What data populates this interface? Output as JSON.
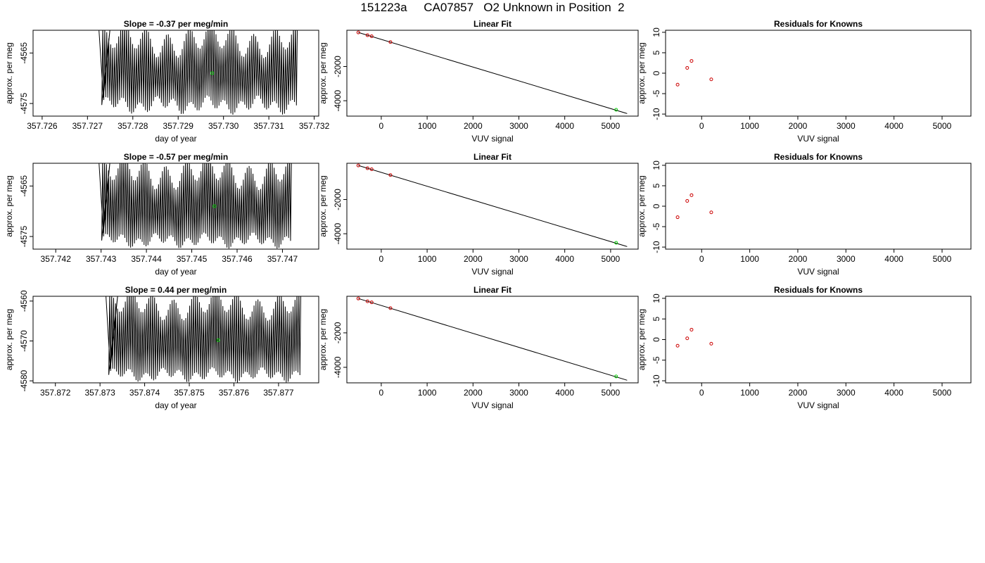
{
  "page": {
    "title": "151223a     CA07857   O2 Unknown in Position  2"
  },
  "chart_data": [
    {
      "type": "line",
      "title": "Slope =  -0.37  per meg/min",
      "xlabel": "day of year",
      "ylabel": "approx. per meg",
      "xlim": [
        357.7258,
        357.7321
      ],
      "ylim": [
        -4577.5,
        -4560.5
      ],
      "xticks": [
        357.726,
        357.727,
        357.728,
        357.729,
        357.73,
        357.731,
        357.732
      ],
      "xtick_labels": [
        "357.726",
        "357.727",
        "357.728",
        "357.729",
        "357.730",
        "357.731",
        "357.732"
      ],
      "yticks": [
        -4565,
        -4575
      ],
      "ytick_labels": [
        "-4565",
        "-4575"
      ],
      "trace": {
        "x_start": 357.72725,
        "x_end": 357.73163,
        "cycles": 100,
        "low_mean": -4575.3,
        "low_amp": 1.2,
        "high_mean": -4562.5,
        "high_amp": 2.5,
        "onset": [
          357.72725,
          357.72735,
          357.7275
        ],
        "color": "#000000"
      },
      "highlight_point": {
        "x": 357.72975,
        "y": -4569.0,
        "color": "#00cc00"
      },
      "grid": false
    },
    {
      "type": "scatter",
      "title": "Linear Fit",
      "xlabel": "VUV signal",
      "ylabel": "approx. per meg",
      "xlim": [
        -750,
        5600
      ],
      "ylim": [
        -4900,
        120
      ],
      "xticks": [
        0,
        1000,
        2000,
        3000,
        4000,
        5000
      ],
      "xtick_labels": [
        "0",
        "1000",
        "2000",
        "3000",
        "4000",
        "5000"
      ],
      "yticks": [
        -2000,
        -4000
      ],
      "ytick_labels": [
        "-2000",
        "-4000"
      ],
      "knowns": {
        "x": [
          -500,
          -300,
          -210,
          200
        ],
        "y": [
          -10,
          -170,
          -230,
          -570
        ],
        "color": "#cc0000"
      },
      "unknown": {
        "x": [
          5120
        ],
        "y": [
          -4530
        ],
        "color": "#00cc00"
      },
      "fit_line": {
        "x": [
          -500,
          5360
        ],
        "y": [
          -10,
          -4750
        ],
        "color": "#000000"
      },
      "grid": false
    },
    {
      "type": "scatter",
      "title": "Residuals for Knowns",
      "xlabel": "VUV signal",
      "ylabel": "approx. per meg",
      "xlim": [
        -750,
        5600
      ],
      "ylim": [
        -10.5,
        10.5
      ],
      "xticks": [
        0,
        1000,
        2000,
        3000,
        4000,
        5000
      ],
      "xtick_labels": [
        "0",
        "1000",
        "2000",
        "3000",
        "4000",
        "5000"
      ],
      "yticks": [
        10,
        5,
        0,
        -5,
        -10
      ],
      "ytick_labels": [
        "10",
        "5",
        "0",
        "-5",
        "-10"
      ],
      "points": {
        "x": [
          -500,
          -300,
          -210,
          200
        ],
        "y": [
          -2.8,
          1.3,
          3.0,
          -1.5
        ],
        "color": "#cc0000"
      },
      "grid": false
    },
    {
      "type": "line",
      "title": "Slope =  -0.57  per meg/min",
      "xlabel": "day of year",
      "ylabel": "approx. per meg",
      "xlim": [
        357.7415,
        357.7478
      ],
      "ylim": [
        -4577.5,
        -4560.5
      ],
      "xticks": [
        357.742,
        357.743,
        357.744,
        357.745,
        357.746,
        357.747
      ],
      "xtick_labels": [
        "357.742",
        "357.743",
        "357.744",
        "357.745",
        "357.746",
        "357.747"
      ],
      "yticks": [
        -4565,
        -4575
      ],
      "ytick_labels": [
        "-4565",
        "-4575"
      ],
      "trace": {
        "x_start": 357.74295,
        "x_end": 357.7472,
        "cycles": 100,
        "low_mean": -4575.8,
        "low_amp": 1.0,
        "high_mean": -4562.3,
        "high_amp": 2.5,
        "onset": [
          357.74295,
          357.74305,
          357.7432
        ],
        "color": "#000000"
      },
      "highlight_point": {
        "x": 357.7455,
        "y": -4569.0,
        "color": "#00cc00"
      },
      "grid": false
    },
    {
      "type": "scatter",
      "title": "Linear Fit",
      "xlabel": "VUV signal",
      "ylabel": "approx. per meg",
      "xlim": [
        -750,
        5600
      ],
      "ylim": [
        -4900,
        120
      ],
      "xticks": [
        0,
        1000,
        2000,
        3000,
        4000,
        5000
      ],
      "xtick_labels": [
        "0",
        "1000",
        "2000",
        "3000",
        "4000",
        "5000"
      ],
      "yticks": [
        -2000,
        -4000
      ],
      "ytick_labels": [
        "-2000",
        "-4000"
      ],
      "knowns": {
        "x": [
          -500,
          -300,
          -210,
          200
        ],
        "y": [
          -10,
          -170,
          -230,
          -570
        ],
        "color": "#cc0000"
      },
      "unknown": {
        "x": [
          5120
        ],
        "y": [
          -4530
        ],
        "color": "#00cc00"
      },
      "fit_line": {
        "x": [
          -500,
          5360
        ],
        "y": [
          -10,
          -4750
        ],
        "color": "#000000"
      },
      "grid": false
    },
    {
      "type": "scatter",
      "title": "Residuals for Knowns",
      "xlabel": "VUV signal",
      "ylabel": "approx. per meg",
      "xlim": [
        -750,
        5600
      ],
      "ylim": [
        -10.5,
        10.5
      ],
      "xticks": [
        0,
        1000,
        2000,
        3000,
        4000,
        5000
      ],
      "xtick_labels": [
        "0",
        "1000",
        "2000",
        "3000",
        "4000",
        "5000"
      ],
      "yticks": [
        10,
        5,
        0,
        -5,
        -10
      ],
      "ytick_labels": [
        "10",
        "5",
        "0",
        "-5",
        "-10"
      ],
      "points": {
        "x": [
          -500,
          -300,
          -210,
          200
        ],
        "y": [
          -2.7,
          1.3,
          2.7,
          -1.5
        ],
        "color": "#cc0000"
      },
      "grid": false
    },
    {
      "type": "line",
      "title": "Slope =  0.44  per meg/min",
      "xlabel": "day of year",
      "ylabel": "approx. per meg",
      "xlim": [
        357.8715,
        357.8779
      ],
      "ylim": [
        -4580.5,
        -4558.8
      ],
      "xticks": [
        357.872,
        357.873,
        357.874,
        357.875,
        357.876,
        357.877
      ],
      "xtick_labels": [
        "357.872",
        "357.873",
        "357.874",
        "357.875",
        "357.876",
        "357.877"
      ],
      "yticks": [
        -4560,
        -4570,
        -4580
      ],
      "ytick_labels": [
        "-4560",
        "-4570",
        "-4580"
      ],
      "trace": {
        "x_start": 357.87313,
        "x_end": 357.8775,
        "cycles": 100,
        "low_mean": -4578.5,
        "low_amp": 1.2,
        "high_mean": -4561.0,
        "high_amp": 2.8,
        "onset": [
          357.87313,
          357.87323,
          357.8734
        ],
        "color": "#000000"
      },
      "highlight_point": {
        "x": 357.87565,
        "y": -4569.8,
        "color": "#00cc00"
      },
      "grid": false
    },
    {
      "type": "scatter",
      "title": "Linear Fit",
      "xlabel": "VUV signal",
      "ylabel": "approx. per meg",
      "xlim": [
        -750,
        5600
      ],
      "ylim": [
        -4900,
        120
      ],
      "xticks": [
        0,
        1000,
        2000,
        3000,
        4000,
        5000
      ],
      "xtick_labels": [
        "0",
        "1000",
        "2000",
        "3000",
        "4000",
        "5000"
      ],
      "yticks": [
        -2000,
        -4000
      ],
      "ytick_labels": [
        "-2000",
        "-4000"
      ],
      "knowns": {
        "x": [
          -500,
          -300,
          -210,
          200
        ],
        "y": [
          -10,
          -170,
          -230,
          -570
        ],
        "color": "#cc0000"
      },
      "unknown": {
        "x": [
          5120
        ],
        "y": [
          -4530
        ],
        "color": "#00cc00"
      },
      "fit_line": {
        "x": [
          -500,
          5360
        ],
        "y": [
          -10,
          -4750
        ],
        "color": "#000000"
      },
      "grid": false
    },
    {
      "type": "scatter",
      "title": "Residuals for Knowns",
      "xlabel": "VUV signal",
      "ylabel": "approx. per meg",
      "xlim": [
        -750,
        5600
      ],
      "ylim": [
        -10.5,
        10.5
      ],
      "xticks": [
        0,
        1000,
        2000,
        3000,
        4000,
        5000
      ],
      "xtick_labels": [
        "0",
        "1000",
        "2000",
        "3000",
        "4000",
        "5000"
      ],
      "points": {
        "x": [
          -500,
          -300,
          -210,
          200
        ],
        "y": [
          -1.5,
          0.3,
          2.4,
          -1.0
        ],
        "color": "#cc0000"
      },
      "yticks": [
        10,
        5,
        0,
        -5,
        -10
      ],
      "ytick_labels": [
        "10",
        "5",
        "0",
        "-5",
        "-10"
      ],
      "grid": false
    }
  ]
}
